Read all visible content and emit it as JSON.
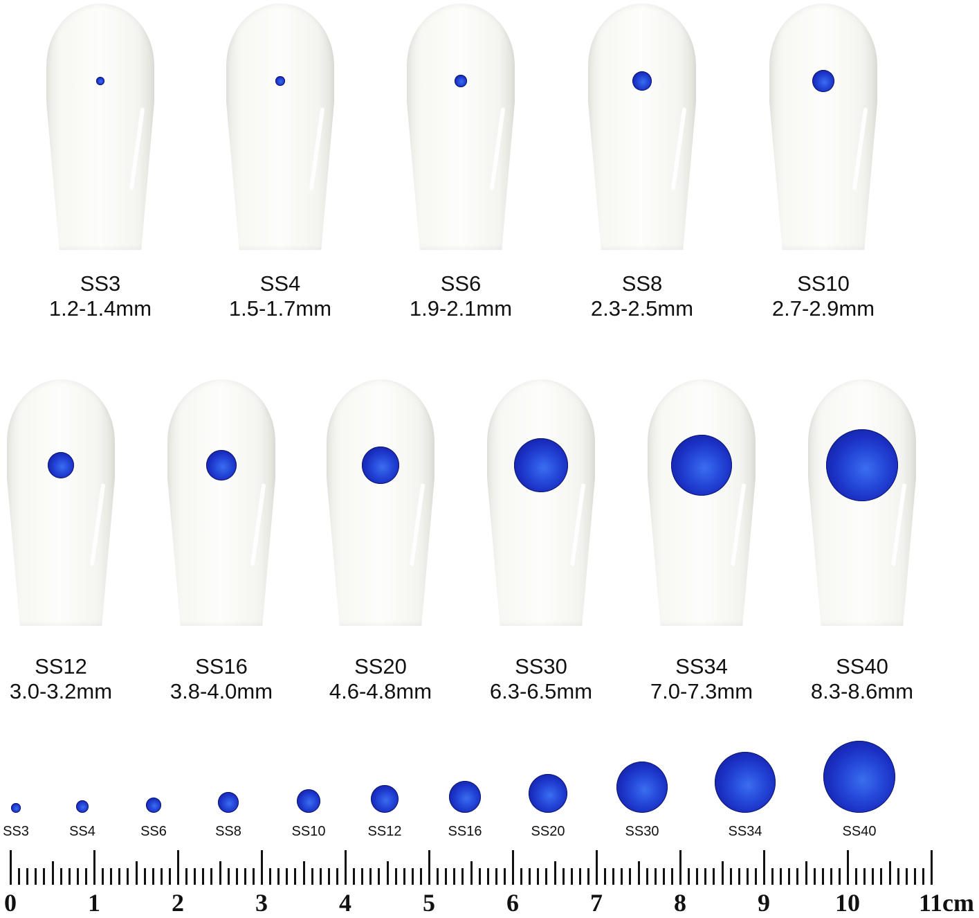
{
  "stone_color": "#1f3cc8",
  "nails": [
    {
      "size": "SS3",
      "range": "1.2-1.4mm",
      "stone_mm": 1.3
    },
    {
      "size": "SS4",
      "range": "1.5-1.7mm",
      "stone_mm": 1.6
    },
    {
      "size": "SS6",
      "range": "1.9-2.1mm",
      "stone_mm": 2.0
    },
    {
      "size": "SS8",
      "range": "2.3-2.5mm",
      "stone_mm": 2.4
    },
    {
      "size": "SS10",
      "range": "2.7-2.9mm",
      "stone_mm": 2.8
    },
    {
      "size": "SS12",
      "range": "3.0-3.2mm",
      "stone_mm": 3.1
    },
    {
      "size": "SS16",
      "range": "3.8-4.0mm",
      "stone_mm": 3.9
    },
    {
      "size": "SS20",
      "range": "4.6-4.8mm",
      "stone_mm": 4.7
    },
    {
      "size": "SS30",
      "range": "6.3-6.5mm",
      "stone_mm": 6.4
    },
    {
      "size": "SS34",
      "range": "7.0-7.3mm",
      "stone_mm": 7.15
    },
    {
      "size": "SS40",
      "range": "8.3-8.6mm",
      "stone_mm": 8.45
    }
  ],
  "ruler": {
    "labels": [
      "0",
      "1",
      "2",
      "3",
      "4",
      "5",
      "6",
      "7",
      "8",
      "9",
      "10",
      "11cm"
    ]
  }
}
